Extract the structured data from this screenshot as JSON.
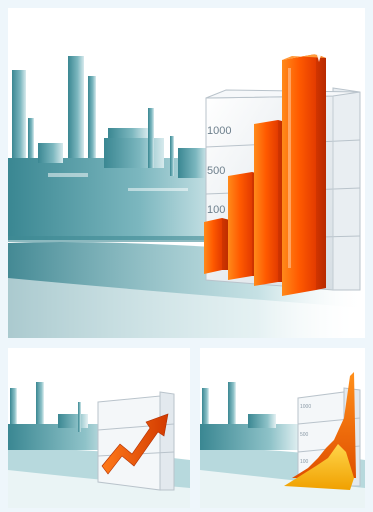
{
  "panels": {
    "main": {
      "grid_labels": [
        "1000",
        "500",
        "100"
      ],
      "bar_colors": [
        "#ffb000",
        "#ff6a00",
        "#e53c00"
      ]
    },
    "left": {
      "arrow_color": "#f05a12"
    },
    "right": {
      "area_colors": [
        "#ffd54a",
        "#f7a00a",
        "#e06a00"
      ]
    }
  },
  "colors": {
    "skyline": "#3f8b95",
    "background": "#eef6fb",
    "panel": "#ffffff"
  }
}
